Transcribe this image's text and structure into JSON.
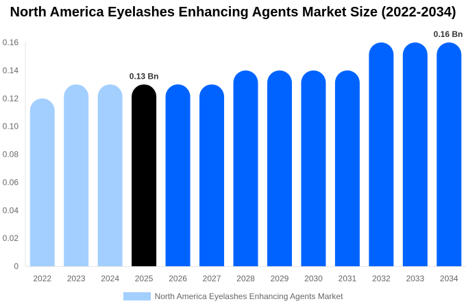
{
  "chart_data": {
    "type": "bar",
    "title": "North America Eyelashes Enhancing Agents Market Size (2022-2034)",
    "categories": [
      "2022",
      "2023",
      "2024",
      "2025",
      "2026",
      "2027",
      "2028",
      "2029",
      "2030",
      "2031",
      "2032",
      "2033",
      "2034"
    ],
    "series": [
      {
        "name": "North America Eyelashes Enhancing Agents Market",
        "values": [
          0.12,
          0.13,
          0.13,
          0.13,
          0.13,
          0.13,
          0.14,
          0.14,
          0.14,
          0.14,
          0.16,
          0.16,
          0.16
        ]
      }
    ],
    "ylim": [
      0,
      0.16
    ],
    "yticks": [
      "0",
      "0.02",
      "0.04",
      "0.06",
      "0.08",
      "0.10",
      "0.12",
      "0.14",
      "0.16"
    ],
    "data_labels": [
      {
        "category": "2025",
        "text": "0.13 Bn"
      },
      {
        "category": "2034",
        "text": "0.16 Bn"
      }
    ],
    "colors": {
      "historical": "#a3cfff",
      "current": "#000000",
      "forecast": "#0063ff"
    },
    "bar_color_groups": [
      "historical",
      "historical",
      "historical",
      "current",
      "forecast",
      "forecast",
      "forecast",
      "forecast",
      "forecast",
      "forecast",
      "forecast",
      "forecast",
      "forecast"
    ],
    "grid": false,
    "legend": "bottom"
  }
}
